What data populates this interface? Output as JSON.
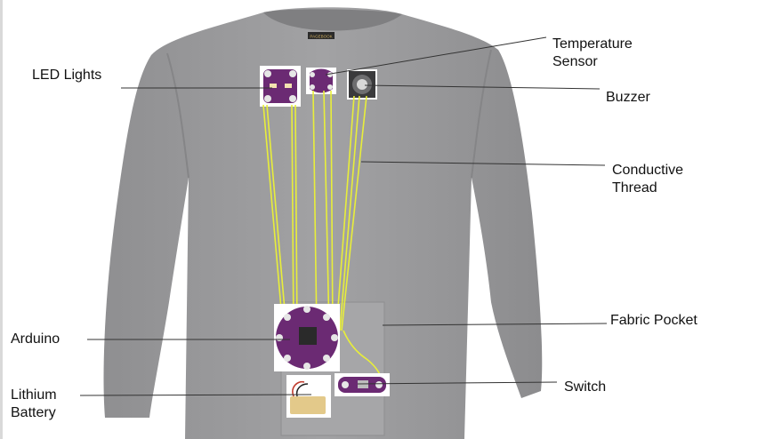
{
  "diagram": {
    "shirt_tag": "PAGEBOOK",
    "labels": {
      "led_lights": [
        "LED Lights"
      ],
      "temperature_sensor": [
        "Temperature",
        "Sensor"
      ],
      "buzzer": [
        "Buzzer"
      ],
      "conductive_thread": [
        "Conductive",
        "Thread"
      ],
      "fabric_pocket": [
        "Fabric Pocket"
      ],
      "arduino": [
        "Arduino"
      ],
      "switch": [
        "Switch"
      ],
      "lithium_battery": [
        "Lithium",
        "Battery"
      ]
    },
    "colors": {
      "shirt": "#9a9a9c",
      "shirt_shadow": "#8a8a8c",
      "thread": "#e8ee3a",
      "pocket": "#a9a9ab",
      "board_purple": "#6b2a73",
      "leader_line": "#333333"
    }
  }
}
